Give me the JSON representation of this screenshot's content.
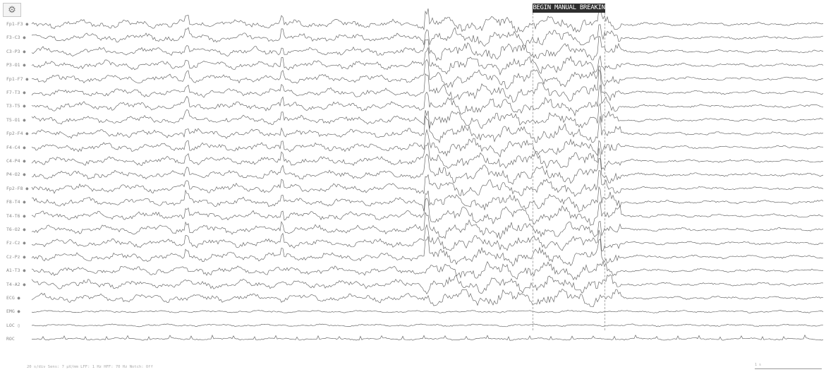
{
  "header": {
    "logo_icon": "gear-icon",
    "event_marker_label": "BEGIN MANUAL BREAKIN"
  },
  "channels": [
    "Fp1-F3 ●",
    "F3-C3 ●",
    "C3-P3 ●",
    "P3-O1 ●",
    "Fp1-F7 ●",
    "F7-T3 ●",
    "T3-T5 ●",
    "T5-O1 ●",
    "Fp2-F4 ●",
    "F4-C4 ●",
    "C4-P4 ●",
    "P4-O2 ●",
    "Fp2-F8 ●",
    "F8-T4 ●",
    "T4-T6 ●",
    "T6-O2 ●",
    "Fz-Cz ●",
    "Cz-Pz ●",
    "A1-T3 ●",
    "T4-A2 ●",
    "ECG ●",
    "EMG ●",
    "LOC ▯",
    "ROC"
  ],
  "footer": {
    "info_text": "20 s/div  Sens: 7 μV/mm  LFF: 1 Hz  HFF: 70 Hz  Notch: Off",
    "scale_label": "1 s"
  },
  "colors": {
    "trace": "#3a3a3a",
    "marker_background": "#2e2e2e"
  }
}
